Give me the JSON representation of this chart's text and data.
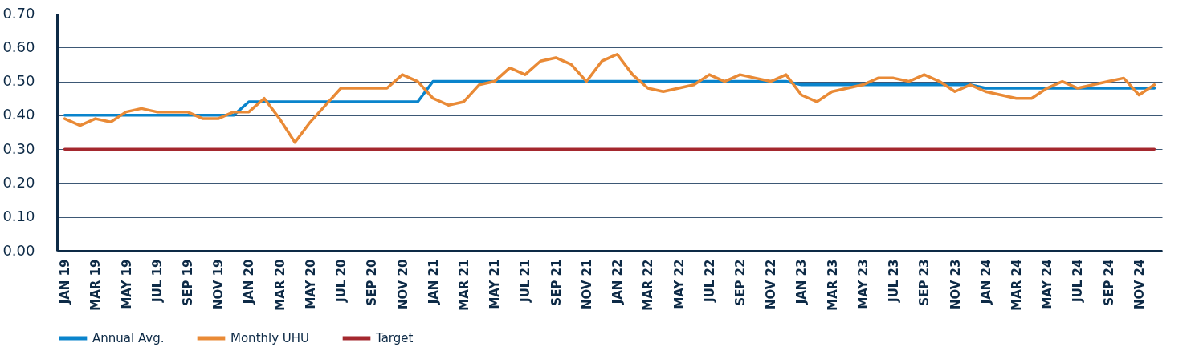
{
  "chart_data": {
    "type": "line",
    "categories": [
      "JAN 19",
      null,
      "MAR 19",
      null,
      "MAY 19",
      null,
      "JUL 19",
      null,
      "SEP 19",
      null,
      "NOV 19",
      null,
      "JAN 20",
      null,
      "MAR 20",
      null,
      "MAY 20",
      null,
      "JUL 20",
      null,
      "SEP 20",
      null,
      "NOV 20",
      null,
      "JAN 21",
      null,
      "MAR 21",
      null,
      "MAY 21",
      null,
      "JUL 21",
      null,
      "SEP 21",
      null,
      "NOV 21",
      null,
      "JAN 22",
      null,
      "MAR 22",
      null,
      "MAY 22",
      null,
      "JUL 22",
      null,
      "SEP 22",
      null,
      "NOV 22",
      null,
      "JAN 23",
      null,
      "MAR 23",
      null,
      "MAY 23",
      null,
      "JUL 23",
      null,
      "SEP 23",
      null,
      "NOV 23",
      null,
      "JAN 24",
      null,
      "MAR 24",
      null,
      "MAY 24",
      null,
      "JUL 24",
      null,
      "SEP 24",
      null,
      "NOV 24",
      null
    ],
    "series": [
      {
        "name": "Annual Avg.",
        "color": "#0a84cc",
        "values": [
          0.4,
          0.4,
          0.4,
          0.4,
          0.4,
          0.4,
          0.4,
          0.4,
          0.4,
          0.4,
          0.4,
          0.4,
          0.44,
          0.44,
          0.44,
          0.44,
          0.44,
          0.44,
          0.44,
          0.44,
          0.44,
          0.44,
          0.44,
          0.44,
          0.5,
          0.5,
          0.5,
          0.5,
          0.5,
          0.5,
          0.5,
          0.5,
          0.5,
          0.5,
          0.5,
          0.5,
          0.5,
          0.5,
          0.5,
          0.5,
          0.5,
          0.5,
          0.5,
          0.5,
          0.5,
          0.5,
          0.5,
          0.5,
          0.49,
          0.49,
          0.49,
          0.49,
          0.49,
          0.49,
          0.49,
          0.49,
          0.49,
          0.49,
          0.49,
          0.49,
          0.48,
          0.48,
          0.48,
          0.48,
          0.48,
          0.48,
          0.48,
          0.48,
          0.48,
          0.48,
          0.48,
          0.48
        ]
      },
      {
        "name": "Monthly UHU",
        "color": "#e98a36",
        "values": [
          0.39,
          0.37,
          0.39,
          0.38,
          0.41,
          0.42,
          0.41,
          0.41,
          0.41,
          0.39,
          0.39,
          0.41,
          0.41,
          0.45,
          0.39,
          0.32,
          0.38,
          0.43,
          0.48,
          0.48,
          0.48,
          0.48,
          0.52,
          0.5,
          0.45,
          0.43,
          0.44,
          0.49,
          0.5,
          0.54,
          0.52,
          0.56,
          0.57,
          0.55,
          0.5,
          0.56,
          0.58,
          0.52,
          0.48,
          0.47,
          0.48,
          0.49,
          0.52,
          0.5,
          0.52,
          0.51,
          0.5,
          0.52,
          0.46,
          0.44,
          0.47,
          0.48,
          0.49,
          0.51,
          0.51,
          0.5,
          0.52,
          0.5,
          0.47,
          0.49,
          0.47,
          0.46,
          0.45,
          0.45,
          0.48,
          0.5,
          0.48,
          0.49,
          0.5,
          0.51,
          0.46,
          0.49
        ]
      },
      {
        "name": "Target",
        "color": "#a4282e",
        "values": [
          0.3,
          0.3,
          0.3,
          0.3,
          0.3,
          0.3,
          0.3,
          0.3,
          0.3,
          0.3,
          0.3,
          0.3,
          0.3,
          0.3,
          0.3,
          0.3,
          0.3,
          0.3,
          0.3,
          0.3,
          0.3,
          0.3,
          0.3,
          0.3,
          0.3,
          0.3,
          0.3,
          0.3,
          0.3,
          0.3,
          0.3,
          0.3,
          0.3,
          0.3,
          0.3,
          0.3,
          0.3,
          0.3,
          0.3,
          0.3,
          0.3,
          0.3,
          0.3,
          0.3,
          0.3,
          0.3,
          0.3,
          0.3,
          0.3,
          0.3,
          0.3,
          0.3,
          0.3,
          0.3,
          0.3,
          0.3,
          0.3,
          0.3,
          0.3,
          0.3,
          0.3,
          0.3,
          0.3,
          0.3,
          0.3,
          0.3,
          0.3,
          0.3,
          0.3,
          0.3,
          0.3,
          0.3
        ]
      }
    ],
    "ylim": [
      0,
      0.7
    ],
    "yticks": [
      {
        "value": 0,
        "label": "0.00"
      },
      {
        "value": 0.1,
        "label": "0.10"
      },
      {
        "value": 0.2,
        "label": "0.20"
      },
      {
        "value": 0.3,
        "label": "0.30"
      },
      {
        "value": 0.4,
        "label": "0.40"
      },
      {
        "value": 0.5,
        "label": "0.50"
      },
      {
        "value": 0.6,
        "label": "0.60"
      },
      {
        "value": 0.7,
        "label": "0.70"
      }
    ],
    "grid": "y",
    "legend": "bottom"
  }
}
